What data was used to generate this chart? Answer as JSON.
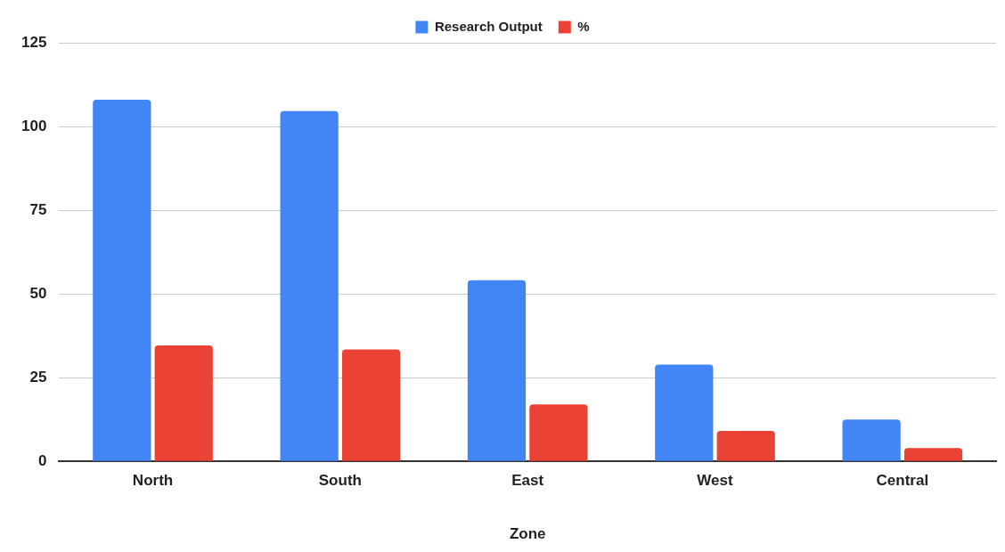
{
  "chart_data": {
    "type": "bar",
    "xlabel": "Zone",
    "categories": [
      "North",
      "South",
      "East",
      "West",
      "Central"
    ],
    "series": [
      {
        "name": "Research Output",
        "color": "#4285f4",
        "values": [
          108,
          104.6,
          54.1,
          28.9,
          12.5
        ]
      },
      {
        "name": "%",
        "color": "#ea4335",
        "values": [
          34.6,
          33.4,
          17,
          9.1,
          4
        ]
      }
    ],
    "ylim": [
      0,
      125
    ],
    "yticks": [
      0,
      25,
      50,
      75,
      100,
      125
    ],
    "grid": "y",
    "legend": "top"
  }
}
